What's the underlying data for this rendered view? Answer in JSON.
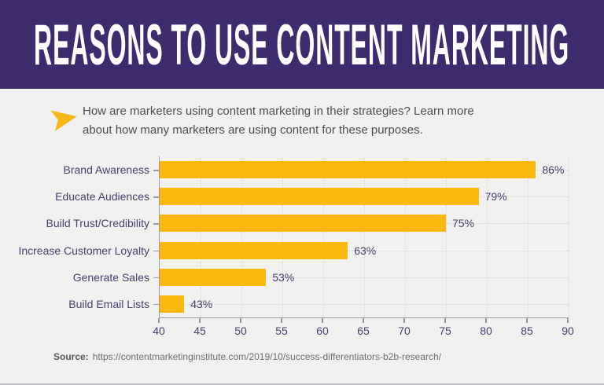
{
  "page": {
    "background": "#F1F1EF"
  },
  "banner": {
    "title": "REASONS TO USE CONTENT MARKETING",
    "bg_color": "#3D2B6E",
    "text_color": "#FFFFFF"
  },
  "intro": {
    "arrow_icon_color": "#F7B718",
    "lines": [
      "How are marketers using content marketing in their strategies? Learn more",
      "about how many marketers are using content for these purposes."
    ]
  },
  "chart_data": {
    "type": "bar",
    "orientation": "horizontal",
    "title": "",
    "categories": [
      "Brand Awareness",
      "Educate Audiences",
      "Build Trust/Credibility",
      "Increase Customer Loyalty",
      "Generate Sales",
      "Build Email Lists"
    ],
    "values": [
      86,
      79,
      75,
      63,
      53,
      43
    ],
    "value_labels": [
      "86%",
      "79%",
      "75%",
      "63%",
      "53%",
      "43%"
    ],
    "xlim": [
      40,
      90
    ],
    "xticks": [
      40,
      45,
      50,
      55,
      60,
      65,
      70,
      75,
      80,
      85,
      90
    ],
    "grid": true,
    "legend": "none",
    "bar_color": "#FBB90F",
    "axis_color": "#9B99A5",
    "text_color": "#46406E",
    "gridline_color": "#D7D5D3"
  },
  "source": {
    "label": "Source:",
    "url_text": "https://contentmarketinginstitute.com/2019/10/success-differentiators-b2b-research/"
  }
}
